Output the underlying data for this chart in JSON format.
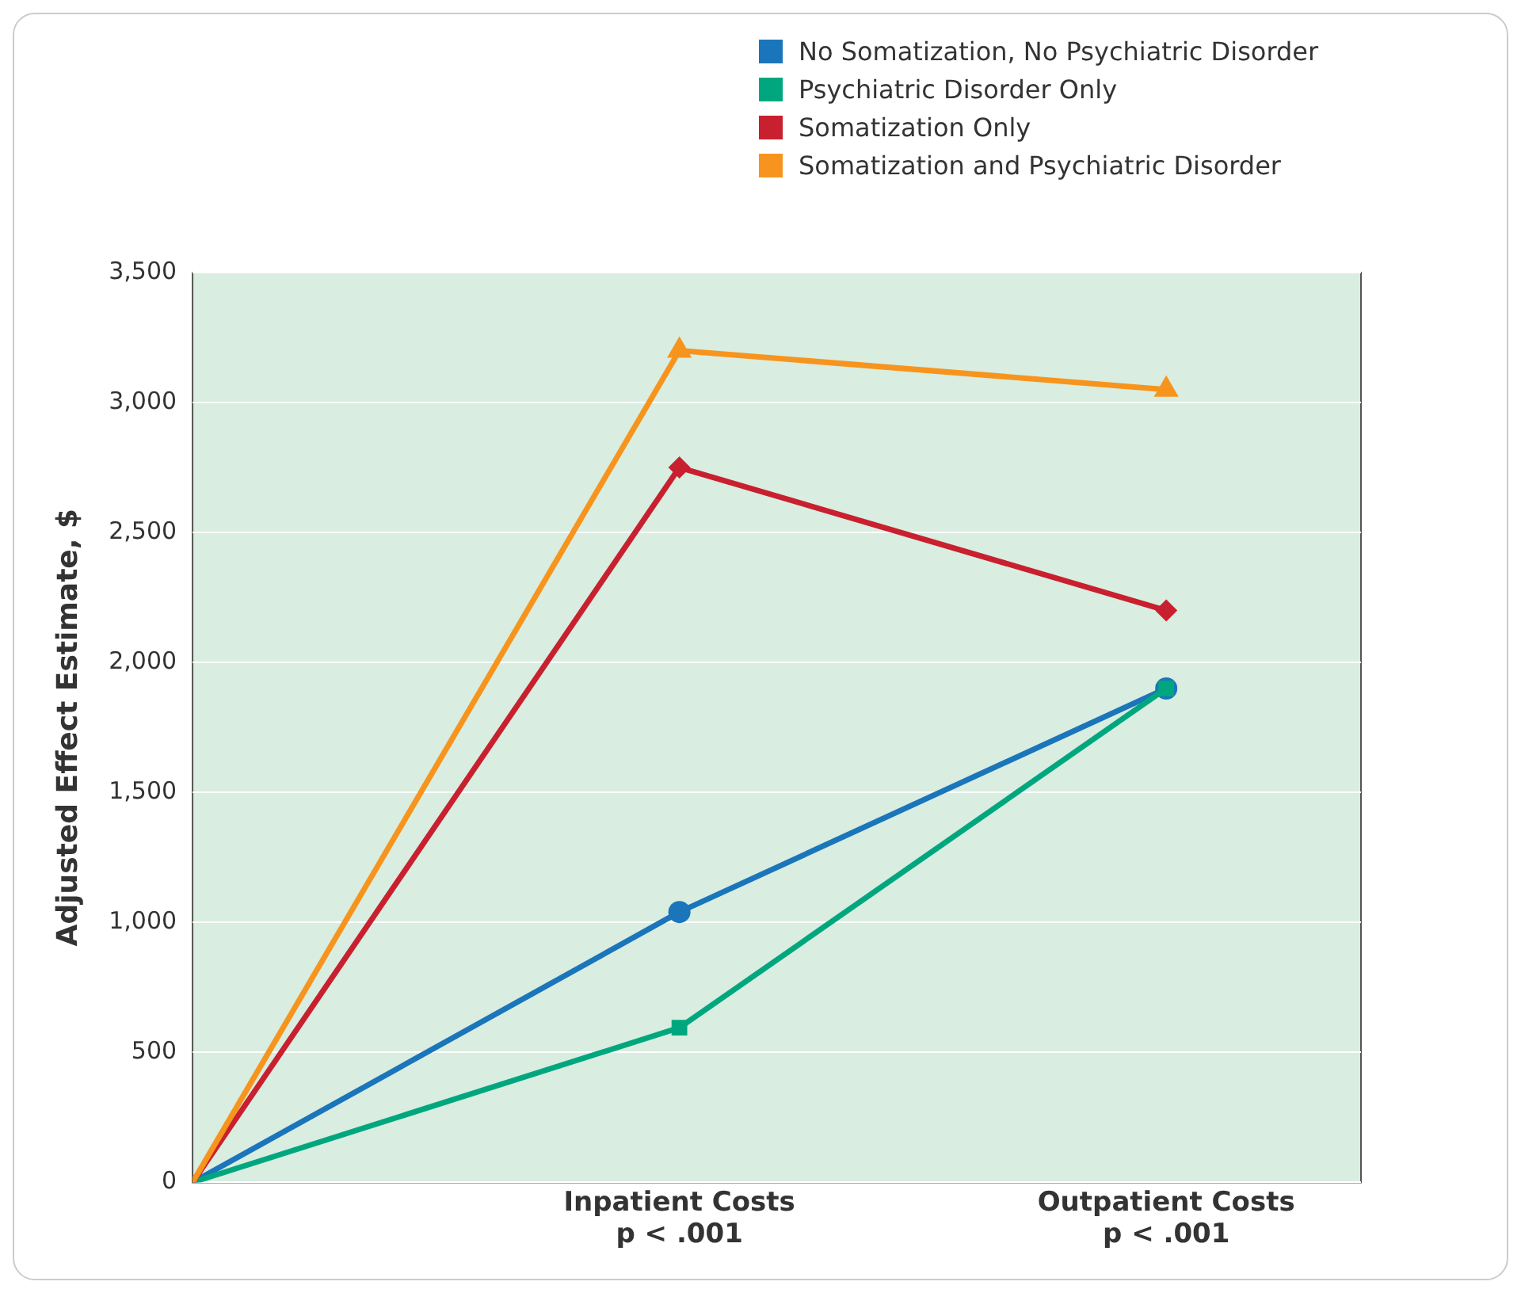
{
  "chart_data": {
    "type": "line",
    "ylabel": "Adjusted Effect Estimate, $",
    "categories": [
      null,
      "Inpatient Costs\np < .001",
      "Outpatient Costs\np < .001"
    ],
    "series": [
      {
        "name": "No Somatization, No Psychiatric Disorder",
        "color": "#1a75bb",
        "values": [
          0,
          1040,
          1900
        ],
        "marker": "circle"
      },
      {
        "name": "Psychiatric Disorder Only",
        "color": "#00a77e",
        "values": [
          0,
          595,
          1900
        ],
        "marker": "square"
      },
      {
        "name": "Somatization Only",
        "color": "#c8202f",
        "values": [
          0,
          2750,
          2200
        ],
        "marker": "diamond"
      },
      {
        "name": "Somatization and Psychiatric Disorder",
        "color": "#f7941d",
        "values": [
          0,
          3200,
          3050
        ],
        "marker": "triangle"
      }
    ],
    "ylim": [
      0,
      3500
    ],
    "yticks": [
      {
        "value": 0,
        "label": "0"
      },
      {
        "value": 500,
        "label": "500"
      },
      {
        "value": 1000,
        "label": "1,000"
      },
      {
        "value": 1500,
        "label": "1,500"
      },
      {
        "value": 2000,
        "label": "2,000"
      },
      {
        "value": 2500,
        "label": "2,500"
      },
      {
        "value": 3000,
        "label": "3,000"
      },
      {
        "value": 3500,
        "label": "3,500"
      }
    ],
    "grid": "y",
    "legend": "top right",
    "line_style": "solid"
  }
}
